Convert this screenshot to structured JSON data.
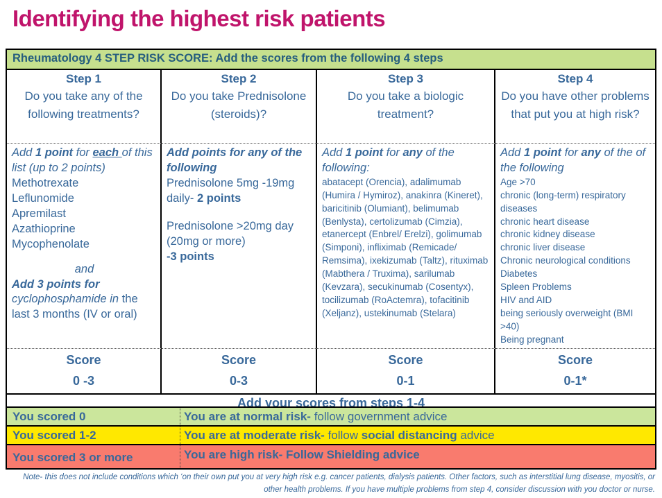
{
  "title": "Identifying the highest risk patients",
  "colors": {
    "title_pink": "#c0146b",
    "text_blue": "#38689a",
    "header_green": "#c6e08e",
    "row_green": "#cbe69c",
    "row_yellow": "#ffe800",
    "row_red": "#f97b6e"
  },
  "table": {
    "header": "Rheumatology 4 STEP RISK SCORE: Add the scores from the following 4 steps",
    "sum_row": "Add your scores from steps 1-4",
    "steps": [
      {
        "label": "Step 1",
        "question": "Do you take any of the following treatments?",
        "score_label": "Score",
        "score_value": "0 -3",
        "instructions": [
          {
            "segs": [
              {
                "t": "Add ",
                "s": "i"
              },
              {
                "t": "1 point ",
                "s": "b i"
              },
              {
                "t": "for ",
                "s": "i"
              },
              {
                "t": "each ",
                "s": "b i u"
              },
              {
                "t": "of this list (up to 2 points)",
                "s": "i"
              }
            ]
          },
          {
            "segs": [
              {
                "t": "Methotrexate",
                "s": ""
              }
            ]
          },
          {
            "segs": [
              {
                "t": "Leflunomide",
                "s": ""
              }
            ]
          },
          {
            "segs": [
              {
                "t": "Apremilast",
                "s": ""
              }
            ]
          },
          {
            "segs": [
              {
                "t": "Azathioprine",
                "s": ""
              }
            ]
          },
          {
            "segs": [
              {
                "t": "Mycophenolate",
                "s": ""
              }
            ]
          },
          {
            "cls": "center gap",
            "segs": [
              {
                "t": "and",
                "s": "i"
              }
            ]
          },
          {
            "segs": [
              {
                "t": "Add 3 points for",
                "s": "b i"
              }
            ]
          },
          {
            "segs": [
              {
                "t": "cyclophosphamide in",
                "s": "i"
              },
              {
                "t": " the last 3 months (IV or oral)",
                "s": ""
              }
            ]
          }
        ]
      },
      {
        "label": "Step 2",
        "question": "Do you take Prednisolone (steroids)?",
        "score_label": "Score",
        "score_value": "0-3",
        "instructions": [
          {
            "segs": [
              {
                "t": "Add points for any of the following",
                "s": "b i"
              }
            ]
          },
          {
            "segs": [
              {
                "t": "Prednisolone 5mg -19mg daily- ",
                "s": ""
              },
              {
                "t": "2 points",
                "s": "b"
              }
            ]
          },
          {
            "cls": "blank",
            "segs": [
              {
                "t": " ",
                "s": ""
              }
            ]
          },
          {
            "segs": [
              {
                "t": "Prednisolone >20mg day (20mg or more)",
                "s": ""
              }
            ]
          },
          {
            "segs": [
              {
                "t": "-3 points",
                "s": "b"
              }
            ]
          }
        ]
      },
      {
        "label": "Step 3",
        "question": "Do you take a biologic treatment?",
        "score_label": "Score",
        "score_value": "0-1",
        "instructions": [
          {
            "segs": [
              {
                "t": "Add ",
                "s": "i"
              },
              {
                "t": "1 point ",
                "s": "b i"
              },
              {
                "t": "for ",
                "s": "i"
              },
              {
                "t": "any ",
                "s": "b i"
              },
              {
                "t": "of the following:",
                "s": "i"
              }
            ]
          },
          {
            "cls": "small",
            "segs": [
              {
                "t": "abatacept (Orencia), adalimumab (Humira / Hymiroz), anakinra (Kineret), baricitinib (Olumiant), belimumab (Benlysta), certolizumab (Cimzia), etanercept (Enbrel/ Erelzi), golimumab (Simponi), infliximab (Remicade/ Remsima), ixekizumab (Taltz), rituximab (Mabthera / Truxima), sarilumab (Kevzara), secukinumab (Cosentyx), tocilizumab (RoActemra), tofacitinib (Xeljanz), ustekinumab (Stelara)",
                "s": ""
              }
            ]
          }
        ]
      },
      {
        "label": "Step 4",
        "question": "Do you have other problems that put you at high risk?",
        "score_label": "Score",
        "score_value": "0-1*",
        "instructions": [
          {
            "segs": [
              {
                "t": "Add ",
                "s": "i"
              },
              {
                "t": "1 point ",
                "s": "b i"
              },
              {
                "t": "for ",
                "s": "i"
              },
              {
                "t": "any ",
                "s": "b i"
              },
              {
                "t": "of the  of the following",
                "s": "i"
              }
            ]
          },
          {
            "cls": "small",
            "segs": [
              {
                "t": "Age >70",
                "s": ""
              }
            ]
          },
          {
            "cls": "small",
            "segs": [
              {
                "t": "chronic (long-term) respiratory diseases",
                "s": ""
              }
            ]
          },
          {
            "cls": "small",
            "segs": [
              {
                "t": "chronic heart disease",
                "s": ""
              }
            ]
          },
          {
            "cls": "small",
            "segs": [
              {
                "t": "chronic kidney disease",
                "s": ""
              }
            ]
          },
          {
            "cls": "small",
            "segs": [
              {
                "t": "chronic liver disease",
                "s": ""
              }
            ]
          },
          {
            "cls": "small",
            "segs": [
              {
                "t": "Chronic neurological conditions",
                "s": ""
              }
            ]
          },
          {
            "cls": "small",
            "segs": [
              {
                "t": "Diabetes",
                "s": ""
              }
            ]
          },
          {
            "cls": "small",
            "segs": [
              {
                "t": "Spleen Problems",
                "s": ""
              }
            ]
          },
          {
            "cls": "small",
            "segs": [
              {
                "t": "HIV and AID",
                "s": ""
              }
            ]
          },
          {
            "cls": "small",
            "segs": [
              {
                "t": "being seriously overweight (BMI >40)",
                "s": ""
              }
            ]
          },
          {
            "cls": "small",
            "segs": [
              {
                "t": "Being pregnant",
                "s": ""
              }
            ]
          }
        ]
      }
    ]
  },
  "results": [
    {
      "score": "You scored 0",
      "advice": [
        {
          "segs": [
            {
              "t": "You are at normal risk-",
              "s": "b"
            },
            {
              "t": " follow government advice",
              "s": ""
            }
          ]
        }
      ]
    },
    {
      "score": "You scored 1-2",
      "advice": [
        {
          "segs": [
            {
              "t": "You are at moderate risk-",
              "s": "b"
            },
            {
              "t": " follow ",
              "s": ""
            },
            {
              "t": "social distancing",
              "s": "b"
            },
            {
              "t": " advice",
              "s": ""
            }
          ]
        }
      ]
    },
    {
      "score": "You scored 3 or more",
      "advice": [
        {
          "segs": [
            {
              "t": "You are high risk- Follow Shielding advice",
              "s": "b"
            }
          ]
        }
      ]
    }
  ],
  "note": "Note- this does not include conditions which ‘on their own put you at very high risk e.g. cancer patients, dialysis patients. Other factors, such as interstitial lung disease, myositis, or other health problems. If you have multiple problems from step 4, consider discussion with you doctor or nurse."
}
